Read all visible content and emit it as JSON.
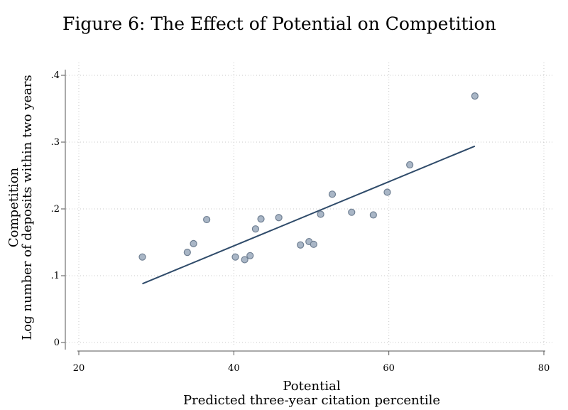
{
  "title": "Figure 6: The Effect of Potential on Competition",
  "chart_data": {
    "type": "scatter",
    "title": "Figure 6: The Effect of Potential on Competition",
    "xlabel": "Potential",
    "xlabel_sub": "Predicted three-year citation percentile",
    "ylabel": "Competition",
    "ylabel_sub": "Log number of deposits within two years",
    "xlim": [
      20,
      80
    ],
    "ylim": [
      0,
      0.4
    ],
    "x_ticks": [
      20,
      40,
      60,
      80
    ],
    "x_tick_labels": [
      "20",
      "40",
      "60",
      "80"
    ],
    "y_ticks": [
      0,
      0.1,
      0.2,
      0.3,
      0.4
    ],
    "y_tick_labels": [
      "0",
      ".1",
      ".2",
      ".3",
      ".4"
    ],
    "grid": true,
    "points": [
      {
        "x": 28.2,
        "y": 0.128
      },
      {
        "x": 34.0,
        "y": 0.135
      },
      {
        "x": 34.8,
        "y": 0.148
      },
      {
        "x": 36.5,
        "y": 0.184
      },
      {
        "x": 40.2,
        "y": 0.128
      },
      {
        "x": 41.4,
        "y": 0.124
      },
      {
        "x": 42.1,
        "y": 0.13
      },
      {
        "x": 42.8,
        "y": 0.17
      },
      {
        "x": 43.5,
        "y": 0.185
      },
      {
        "x": 45.8,
        "y": 0.187
      },
      {
        "x": 48.6,
        "y": 0.146
      },
      {
        "x": 49.7,
        "y": 0.151
      },
      {
        "x": 50.3,
        "y": 0.147
      },
      {
        "x": 51.2,
        "y": 0.192
      },
      {
        "x": 52.7,
        "y": 0.222
      },
      {
        "x": 55.2,
        "y": 0.195
      },
      {
        "x": 58.0,
        "y": 0.191
      },
      {
        "x": 59.8,
        "y": 0.225
      },
      {
        "x": 62.7,
        "y": 0.266
      },
      {
        "x": 71.1,
        "y": 0.369
      }
    ],
    "fit_line": {
      "x": [
        28.2,
        71.1
      ],
      "y": [
        0.088,
        0.294
      ]
    }
  }
}
